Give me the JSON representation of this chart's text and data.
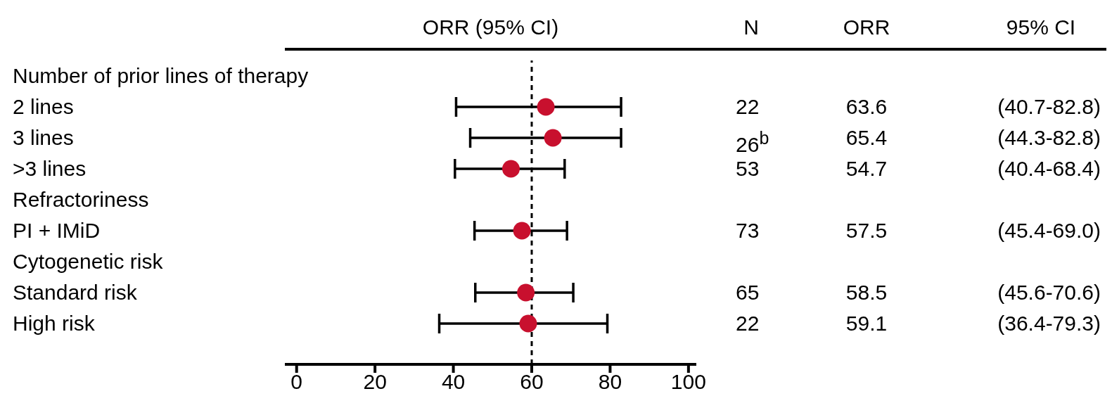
{
  "chart_data": {
    "type": "scatter",
    "orientation": "horizontal",
    "title": "ORR (95% CI)",
    "categories": [
      "Number of prior lines of therapy",
      "2 lines",
      "3 lines",
      ">3 lines",
      "Refractoriness",
      "PI + IMiD",
      "Cytogenetic risk",
      "Standard risk",
      "High risk"
    ],
    "values": [
      null,
      63.6,
      65.4,
      54.7,
      null,
      57.5,
      null,
      58.5,
      59.1
    ],
    "errors": [
      null,
      [
        40.7,
        82.8
      ],
      [
        44.3,
        82.8
      ],
      [
        40.4,
        68.4
      ],
      null,
      [
        45.4,
        69.0
      ],
      null,
      [
        45.6,
        70.6
      ],
      [
        36.4,
        79.3
      ]
    ],
    "value_labels": [
      null,
      "63.6",
      "65.4",
      "54.7",
      null,
      "57.5",
      null,
      "58.5",
      "59.1"
    ],
    "color": "#c8102e",
    "marker": "circle",
    "xlim": [
      -3,
      102
    ],
    "xticks": [
      0,
      20,
      40,
      60,
      80,
      100
    ],
    "ref_lines": [
      {
        "axis": "x",
        "value": 60,
        "line_style": "dashed"
      }
    ],
    "annotations": [
      "N",
      "ORR",
      "95% CI",
      "22",
      "(40.7-82.8)",
      "26$^{b}$",
      "(44.3-82.8)",
      "53",
      "(40.4-68.4)",
      "73",
      "(45.4-69.0)",
      "65",
      "(45.6-70.6)",
      "22",
      "(36.4-79.3)"
    ]
  }
}
